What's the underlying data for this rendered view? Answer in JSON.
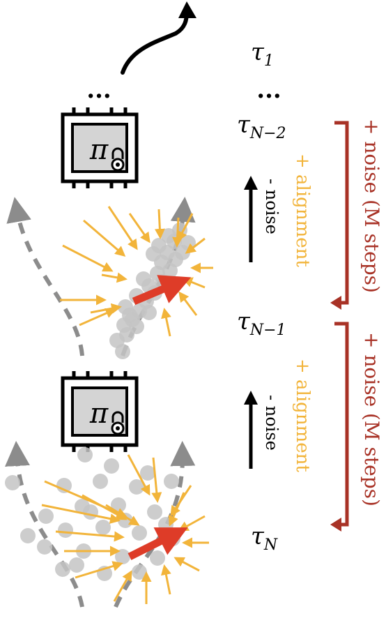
{
  "colors": {
    "red_bracket": "#a83226",
    "orange": "#f2b43a",
    "gray_dot": "#c4c4c4",
    "dash_gray": "#8c8c8c",
    "red_arrow": "#de3c28",
    "chip_fill": "#d4d4d4"
  },
  "states": {
    "tau1": {
      "base": "τ",
      "sub": "1"
    },
    "tauN2": {
      "base": "τ",
      "sub": "N−2"
    },
    "tauN1": {
      "base": "τ",
      "sub": "N−1"
    },
    "tauN": {
      "base": "τ",
      "sub": "N"
    }
  },
  "ellipsis": "...",
  "policy_symbol": "π",
  "labels": {
    "noise_steps": "+ noise (M steps)",
    "alignment": "+ alignment",
    "minus_noise": "- noise"
  },
  "icons": [
    "policy-chip-icon",
    "lock-icon",
    "curved-arrow-icon",
    "up-arrow-icon",
    "bracket-arrow-icon"
  ]
}
